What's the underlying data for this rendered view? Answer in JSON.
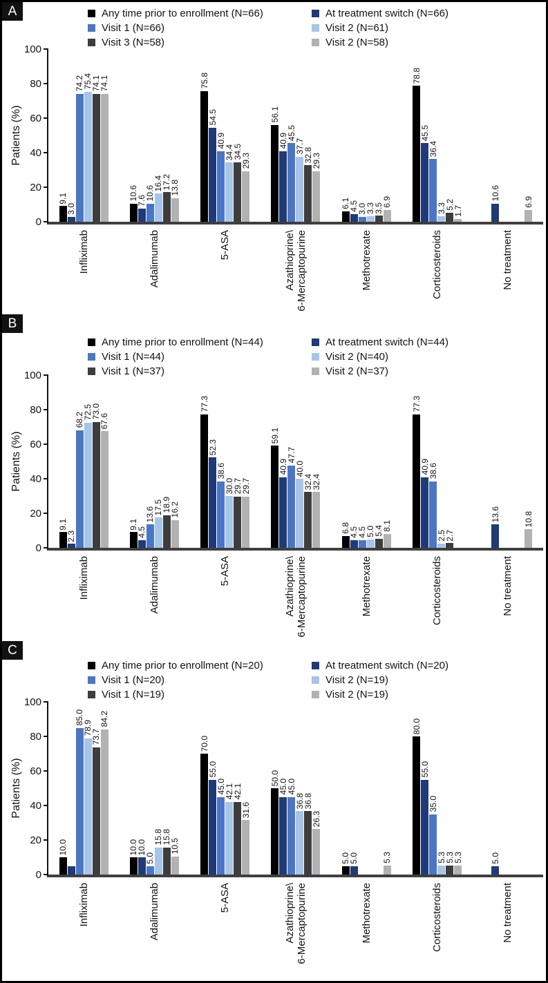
{
  "colors": {
    "badge_background": "#121212",
    "axis": "#111111",
    "baseline": "#3f3f3f",
    "series_black": "#000000",
    "series_navy": "#1f3a77",
    "series_medium_blue": "#4b76c4",
    "series_light_blue": "#a6c5e8",
    "series_dark_gray": "#3d3d3d",
    "series_light_gray": "#b2b2b2"
  },
  "chart_data": [
    {
      "type": "bar",
      "panel": "A",
      "ylabel": "Patients (%)",
      "ylim": [
        0,
        100
      ],
      "yticks": [
        0,
        20,
        40,
        60,
        80,
        100
      ],
      "grid": false,
      "legend_position": "top",
      "categories": [
        "Infliximab",
        "Adalimumab",
        "5-ASA",
        "Azathioprine\\\n6-Mercaptopurine",
        "Methotrexate",
        "Corticosteroids",
        "No treatment"
      ],
      "series": [
        {
          "name": "Any time prior to enrollment (N=66)",
          "color": "#000000",
          "values": [
            9.1,
            10.6,
            75.8,
            56.1,
            6.1,
            78.8,
            0
          ],
          "labels": [
            "9.1",
            "10.6",
            "75.8",
            "56.1",
            "6.1",
            "78.8",
            ""
          ]
        },
        {
          "name": "At treatment switch (N=66)",
          "color": "#1f3a77",
          "values": [
            3.0,
            7.6,
            54.5,
            40.9,
            4.5,
            45.5,
            10.6
          ],
          "labels": [
            "3.0",
            "7.6",
            "54.5",
            "40.9",
            "4.5",
            "45.5",
            "10.6"
          ]
        },
        {
          "name": "Visit 1 (N=66)",
          "color": "#4b76c4",
          "values": [
            74.2,
            10.6,
            40.9,
            45.5,
            3.0,
            36.4,
            0
          ],
          "labels": [
            "74.2",
            "10.6",
            "40.9",
            "45.5",
            "3.0",
            "36.4",
            ""
          ]
        },
        {
          "name": "Visit 2 (N=61)",
          "color": "#a6c5e8",
          "values": [
            75.4,
            16.4,
            34.4,
            37.7,
            3.3,
            3.3,
            0
          ],
          "labels": [
            "75.4",
            "16.4",
            "34.4",
            "37.7",
            "3.3",
            "3.3",
            ""
          ]
        },
        {
          "name": "Visit 3 (N=58)",
          "color": "#3d3d3d",
          "values": [
            74.1,
            17.2,
            34.5,
            32.8,
            3.5,
            5.2,
            0
          ],
          "labels": [
            "74.1",
            "17.2",
            "34.5",
            "32.8",
            "3.5",
            "5.2",
            ""
          ]
        },
        {
          "name": "Visit 2 (N=58)",
          "color": "#b2b2b2",
          "values": [
            74.1,
            13.8,
            29.3,
            29.3,
            6.9,
            1.7,
            6.9
          ],
          "labels": [
            "74.1",
            "13.8",
            "29.3",
            "29.3",
            "6.9",
            "1.7",
            "6.9"
          ]
        }
      ]
    },
    {
      "type": "bar",
      "panel": "B",
      "ylabel": "Patients (%)",
      "ylim": [
        0,
        100
      ],
      "yticks": [
        0,
        20,
        40,
        60,
        80,
        100
      ],
      "grid": false,
      "legend_position": "top",
      "categories": [
        "Infliximab",
        "Adalimumab",
        "5-ASA",
        "Azathioprine\\\n6-Mercaptopurine",
        "Methotrexate",
        "Corticosteroids",
        "No treatment"
      ],
      "series": [
        {
          "name": "Any time prior to enrollment (N=44)",
          "color": "#000000",
          "values": [
            9.1,
            9.1,
            77.3,
            59.1,
            6.8,
            77.3,
            0
          ],
          "labels": [
            "9.1",
            "9.1",
            "77.3",
            "59.1",
            "6.8",
            "77.3",
            ""
          ]
        },
        {
          "name": "At treatment switch (N=44)",
          "color": "#1f3a77",
          "values": [
            2.3,
            4.5,
            52.3,
            40.9,
            4.5,
            40.9,
            13.6
          ],
          "labels": [
            "2.3",
            "4.5",
            "52.3",
            "40.9",
            "4.5",
            "40.9",
            "13.6"
          ]
        },
        {
          "name": "Visit 1 (N=44)",
          "color": "#4b76c4",
          "values": [
            68.2,
            13.6,
            38.6,
            47.7,
            4.5,
            38.6,
            0
          ],
          "labels": [
            "68.2",
            "13.6",
            "38.6",
            "47.7",
            "4.5",
            "38.6",
            ""
          ]
        },
        {
          "name": "Visit 2 (N=40)",
          "color": "#a6c5e8",
          "values": [
            72.5,
            17.5,
            30.0,
            40.0,
            5.0,
            2.5,
            0
          ],
          "labels": [
            "72.5",
            "17.5",
            "30.0",
            "40.0",
            "5.0",
            "2.5",
            ""
          ]
        },
        {
          "name": "Visit 1 (N=37)",
          "color": "#3d3d3d",
          "values": [
            73.0,
            18.9,
            29.7,
            32.4,
            5.4,
            2.7,
            0
          ],
          "labels": [
            "73.0",
            "18.9",
            "29.7",
            "32.4",
            "5.4",
            "2.7",
            ""
          ]
        },
        {
          "name": "Visit 2 (N=37)",
          "color": "#b2b2b2",
          "values": [
            67.6,
            16.2,
            29.7,
            32.4,
            8.1,
            0,
            10.8
          ],
          "labels": [
            "67.6",
            "16.2",
            "29.7",
            "32.4",
            "8.1",
            "",
            "10.8"
          ]
        }
      ]
    },
    {
      "type": "bar",
      "panel": "C",
      "ylabel": "Patients (%)",
      "ylim": [
        0,
        100
      ],
      "yticks": [
        0,
        20,
        40,
        60,
        80,
        100
      ],
      "grid": false,
      "legend_position": "top",
      "categories": [
        "Infliximab",
        "Adalimumab",
        "5-ASA",
        "Azathioprine\\\n6-Mercaptopurine",
        "Methotrexate",
        "Corticosteroids",
        "No treatment"
      ],
      "series": [
        {
          "name": "Any time prior to enrollment (N=20)",
          "color": "#000000",
          "values": [
            10.0,
            10.0,
            70.0,
            50.0,
            5.0,
            80.0,
            0
          ],
          "labels": [
            "10.0",
            "10.0",
            "70.0",
            "50.0",
            "5.0",
            "80.0",
            ""
          ]
        },
        {
          "name": "At treatment switch (N=20)",
          "color": "#1f3a77",
          "values": [
            5.0,
            10.0,
            55.0,
            45.0,
            5.0,
            55.0,
            5.0
          ],
          "labels": [
            "",
            "10.0",
            "55.0",
            "45.0",
            "5.0",
            "55.0",
            "5.0"
          ]
        },
        {
          "name": "Visit 1 (N=20)",
          "color": "#4b76c4",
          "values": [
            85.0,
            5.0,
            45.0,
            45.0,
            0,
            35.0,
            0
          ],
          "labels": [
            "85.0",
            "5.0",
            "45.0",
            "45.0",
            "",
            "35.0",
            ""
          ]
        },
        {
          "name": "Visit 2 (N=19)",
          "color": "#a6c5e8",
          "values": [
            78.9,
            15.8,
            42.1,
            36.8,
            0,
            5.3,
            0
          ],
          "labels": [
            "78.9",
            "15.8",
            "42.1",
            "36.8",
            "",
            "5.3",
            ""
          ]
        },
        {
          "name": "Visit 1 (N=19)",
          "color": "#3d3d3d",
          "values": [
            73.7,
            15.8,
            42.1,
            36.8,
            0,
            5.3,
            0
          ],
          "labels": [
            "73.7",
            "15.8",
            "42.1",
            "36.8",
            "",
            "5.3",
            ""
          ]
        },
        {
          "name": "Visit 2 (N=19)",
          "color": "#b2b2b2",
          "values": [
            84.2,
            10.5,
            31.6,
            26.3,
            5.3,
            5.3,
            0
          ],
          "labels": [
            "84.2",
            "10.5",
            "31.6",
            "26.3",
            "5.3",
            "5.3",
            ""
          ]
        }
      ]
    }
  ]
}
